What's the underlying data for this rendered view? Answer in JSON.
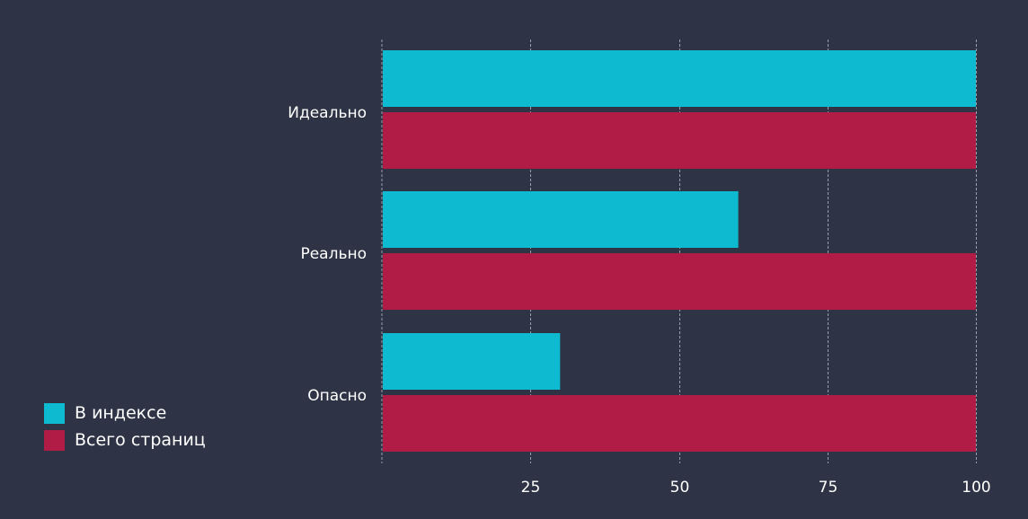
{
  "chart_data": {
    "type": "bar",
    "orientation": "horizontal",
    "categories": [
      "Идеально",
      "Реально",
      "Опасно"
    ],
    "series": [
      {
        "name": "В индексе",
        "color": "#0dbacf",
        "values": [
          100,
          60,
          30
        ]
      },
      {
        "name": "Всего страниц",
        "color": "#b01c45",
        "values": [
          100,
          100,
          100
        ]
      }
    ],
    "xlim": [
      0,
      100
    ],
    "xticks": [
      25,
      50,
      75,
      100
    ],
    "grid": true,
    "legend_position": "bottom-left",
    "title": "",
    "xlabel": "",
    "ylabel": ""
  }
}
